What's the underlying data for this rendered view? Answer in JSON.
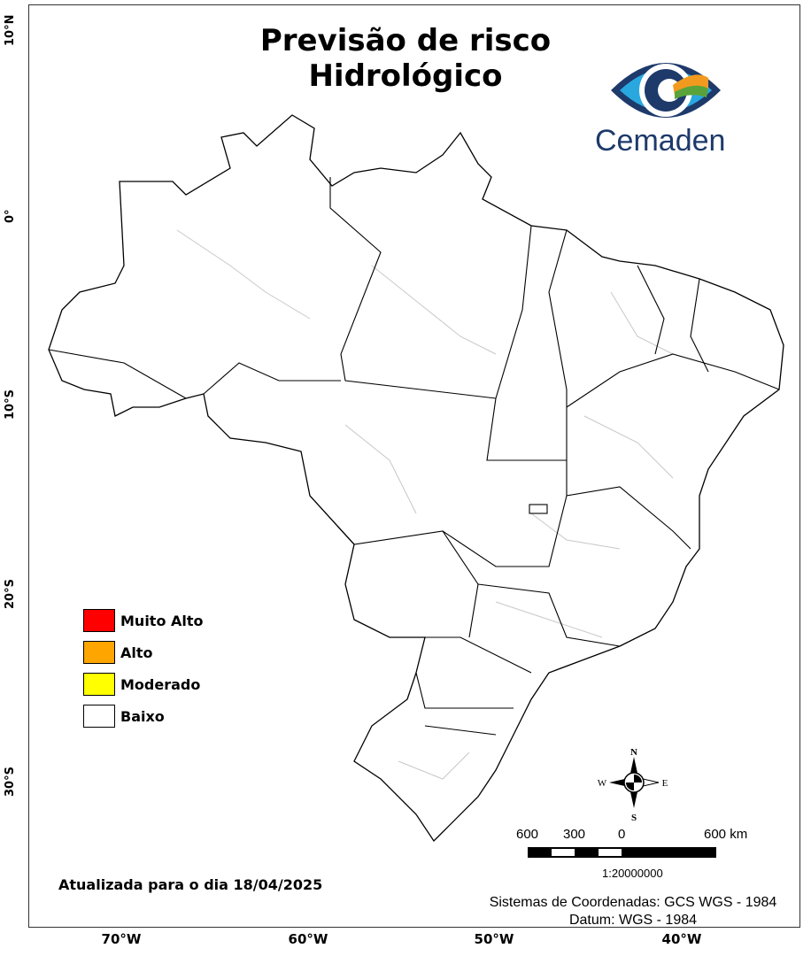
{
  "title": {
    "line1": "Previsão de risco",
    "line2": "Hidrológico"
  },
  "logo": {
    "text": "Cemaden",
    "colors": {
      "blue": "#1d3a6b",
      "cyan": "#29a8e0",
      "green": "#5aa33b",
      "orange": "#f29a1f"
    }
  },
  "axes": {
    "lat_ticks": [
      "10°N",
      "0°",
      "10°S",
      "20°S",
      "30°S"
    ],
    "lon_ticks": [
      "70°W",
      "60°W",
      "50°W",
      "40°W"
    ]
  },
  "legend": {
    "items": [
      {
        "label": "Muito Alto",
        "color": "#ff0000"
      },
      {
        "label": "Alto",
        "color": "#ffa500"
      },
      {
        "label": "Moderado",
        "color": "#ffff00"
      },
      {
        "label": "Baixo",
        "color": "#ffffff"
      }
    ]
  },
  "compass": {
    "n": "N",
    "s": "S",
    "e": "E",
    "w": "W"
  },
  "scale_bar": {
    "labels": [
      "600",
      "300",
      "0",
      "600 km"
    ],
    "ratio": "1:20000000"
  },
  "updated_text": "Atualizada para o dia 18/04/2025",
  "coordinate_system": {
    "line1": "Sistemas de Coordenadas: GCS WGS - 1984",
    "line2": "Datum: WGS - 1984"
  }
}
